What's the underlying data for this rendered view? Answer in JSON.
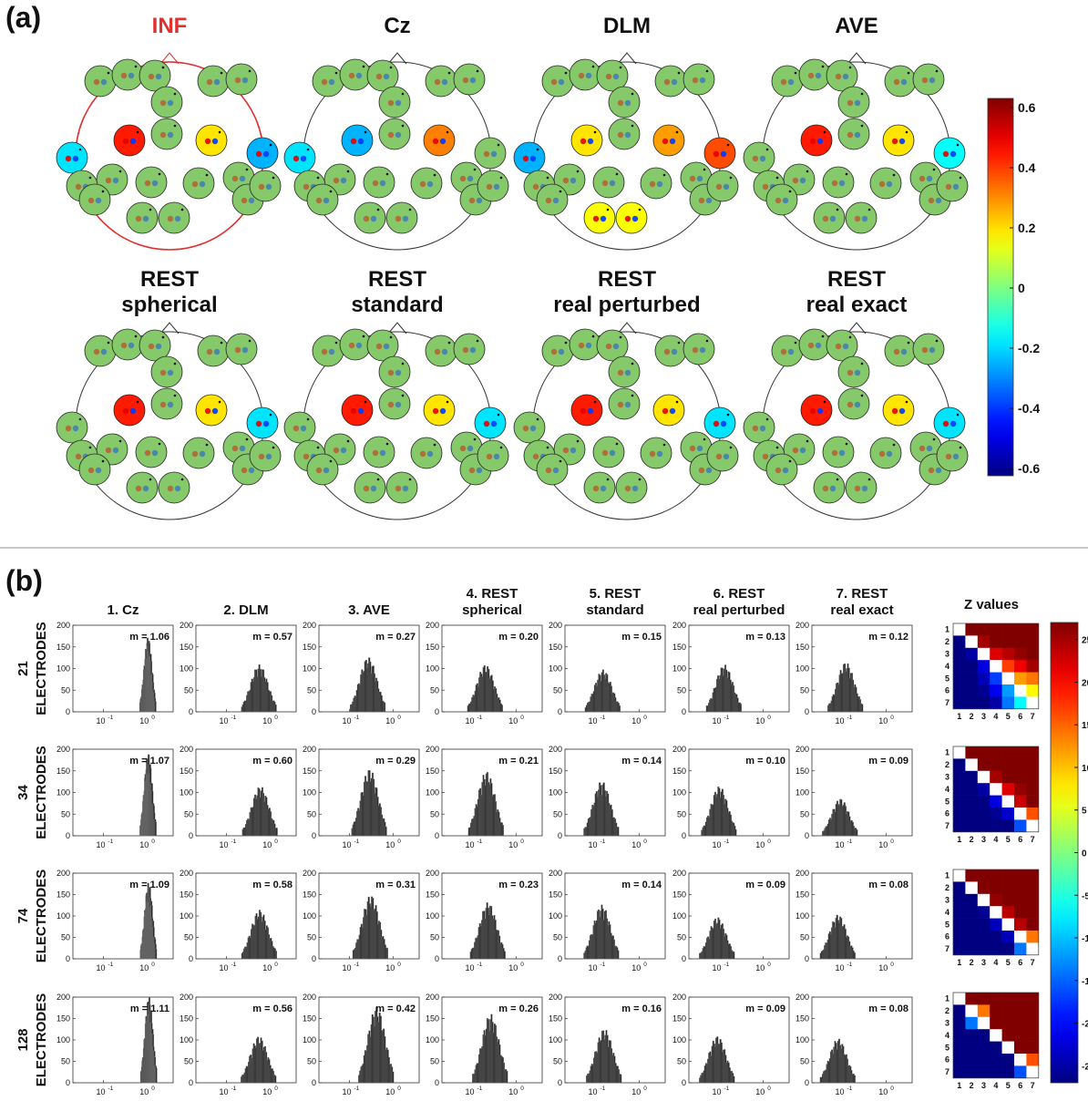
{
  "panel_a": {
    "label": "(a)",
    "titles": [
      [
        "INF"
      ],
      [
        "Cz"
      ],
      [
        "DLM"
      ],
      [
        "AVE"
      ],
      [
        "REST",
        "spherical"
      ],
      [
        "REST",
        "standard"
      ],
      [
        "REST",
        "real perturbed"
      ],
      [
        "REST",
        "real exact"
      ]
    ],
    "colorbar": {
      "ticks": [
        "0.6",
        "0.4",
        "0.2",
        "0",
        "-0.2",
        "-0.4",
        "-0.6"
      ]
    }
  },
  "panel_b": {
    "label": "(b)",
    "columns": [
      [
        "1. Cz"
      ],
      [
        "2. DLM"
      ],
      [
        "3. AVE"
      ],
      [
        "4. REST",
        "spherical"
      ],
      [
        "5. REST",
        "standard"
      ],
      [
        "6. REST",
        "real perturbed"
      ],
      [
        "7. REST",
        "real exact"
      ]
    ],
    "rows": [
      [
        "21",
        "ELECTRODES"
      ],
      [
        "34",
        "ELECTRODES"
      ],
      [
        "74",
        "ELECTRODES"
      ],
      [
        "128",
        "ELECTRODES"
      ]
    ],
    "z_title": "Z values",
    "z_colorbar": {
      "ticks": [
        "25",
        "20",
        "15",
        "10",
        "5",
        "0",
        "-5",
        "-10",
        "-15",
        "-20",
        "-25"
      ]
    },
    "matrix_ticks": [
      "1",
      "2",
      "3",
      "4",
      "5",
      "6",
      "7"
    ]
  },
  "chart_data": [
    {
      "type": "heatmap",
      "title": "(a)",
      "maps": [
        "INF",
        "Cz",
        "DLM",
        "AVE",
        "REST spherical",
        "REST standard",
        "REST real perturbed",
        "REST real exact"
      ],
      "colorbar_range": [
        -0.6,
        0.6
      ],
      "colorbar_ticks": [
        0.6,
        0.4,
        0.2,
        0,
        -0.2,
        -0.4,
        -0.6
      ]
    },
    {
      "type": "bar",
      "title": "(b)",
      "xscale": "log",
      "xticks": [
        "10^-1",
        "10^0"
      ],
      "ylim": [
        0,
        200
      ],
      "yticks": [
        0,
        50,
        100,
        150,
        200
      ],
      "columns": [
        "1. Cz",
        "2. DLM",
        "3. AVE",
        "4. REST spherical",
        "5. REST standard",
        "6. REST real perturbed",
        "7. REST real exact"
      ],
      "rows": [
        "21 ELECTRODES",
        "34 ELECTRODES",
        "74 ELECTRODES",
        "128 ELECTRODES"
      ],
      "m_values": [
        [
          "m = 1.06",
          "m = 0.57",
          "m = 0.27",
          "m = 0.20",
          "m = 0.15",
          "m = 0.13",
          "m = 0.12"
        ],
        [
          "m = 1.07",
          "m = 0.60",
          "m = 0.29",
          "m = 0.21",
          "m = 0.14",
          "m = 0.10",
          "m = 0.09"
        ],
        [
          "m = 1.09",
          "m = 0.58",
          "m = 0.31",
          "m = 0.23",
          "m = 0.14",
          "m = 0.09",
          "m = 0.08"
        ],
        [
          "m = 1.11",
          "m = 0.56",
          "m = 0.42",
          "m = 0.26",
          "m = 0.16",
          "m = 0.09",
          "m = 0.08"
        ]
      ],
      "m_numeric": [
        [
          1.06,
          0.57,
          0.27,
          0.2,
          0.15,
          0.13,
          0.12
        ],
        [
          1.07,
          0.6,
          0.29,
          0.21,
          0.14,
          0.1,
          0.09
        ],
        [
          1.09,
          0.58,
          0.31,
          0.23,
          0.14,
          0.09,
          0.08
        ],
        [
          1.11,
          0.56,
          0.42,
          0.26,
          0.16,
          0.09,
          0.08
        ]
      ],
      "peak_counts": [
        [
          150,
          95,
          110,
          95,
          85,
          95,
          100
        ],
        [
          165,
          100,
          135,
          130,
          110,
          100,
          75
        ],
        [
          155,
          100,
          130,
          115,
          110,
          85,
          90
        ],
        [
          175,
          95,
          155,
          140,
          110,
          95,
          90
        ]
      ]
    },
    {
      "type": "heatmap",
      "title": "Z values",
      "xticks": [
        1,
        2,
        3,
        4,
        5,
        6,
        7
      ],
      "yticks": [
        1,
        2,
        3,
        4,
        5,
        6,
        7
      ],
      "colorbar_range": [
        -27,
        27
      ],
      "colorbar_ticks": [
        25,
        20,
        15,
        10,
        5,
        0,
        -5,
        -10,
        -15,
        -20,
        -25
      ],
      "matrices": [
        [
          [
            0,
            27,
            27,
            27,
            27,
            27,
            27
          ],
          [
            -27,
            0,
            25,
            27,
            27,
            27,
            27
          ],
          [
            -27,
            -25,
            0,
            22,
            24,
            26,
            27
          ],
          [
            -27,
            -27,
            -22,
            0,
            17,
            21,
            25
          ],
          [
            -27,
            -27,
            -24,
            -17,
            0,
            12,
            14
          ],
          [
            -27,
            -27,
            -26,
            -21,
            -12,
            0,
            7
          ],
          [
            -27,
            -27,
            -27,
            -25,
            -14,
            -7,
            0
          ]
        ],
        [
          [
            0,
            27,
            27,
            27,
            27,
            27,
            27
          ],
          [
            -27,
            0,
            27,
            27,
            27,
            27,
            27
          ],
          [
            -27,
            -27,
            0,
            25,
            27,
            27,
            27
          ],
          [
            -27,
            -27,
            -25,
            0,
            22,
            26,
            27
          ],
          [
            -27,
            -27,
            -27,
            -22,
            0,
            23,
            27
          ],
          [
            -27,
            -27,
            -27,
            -26,
            -23,
            0,
            16
          ],
          [
            -27,
            -27,
            -27,
            -27,
            -27,
            -16,
            0
          ]
        ],
        [
          [
            0,
            27,
            27,
            27,
            27,
            27,
            27
          ],
          [
            -27,
            0,
            27,
            27,
            27,
            27,
            27
          ],
          [
            -27,
            -27,
            0,
            26,
            27,
            27,
            27
          ],
          [
            -27,
            -27,
            -26,
            0,
            24,
            27,
            27
          ],
          [
            -27,
            -27,
            -27,
            -24,
            0,
            24,
            27
          ],
          [
            -27,
            -27,
            -27,
            -27,
            -24,
            0,
            14
          ],
          [
            -27,
            -27,
            -27,
            -27,
            -27,
            -14,
            0
          ]
        ],
        [
          [
            0,
            27,
            27,
            27,
            27,
            27,
            27
          ],
          [
            -27,
            0,
            14,
            27,
            27,
            27,
            27
          ],
          [
            -27,
            -14,
            0,
            27,
            27,
            27,
            27
          ],
          [
            -27,
            -27,
            -27,
            0,
            27,
            27,
            27
          ],
          [
            -27,
            -27,
            -27,
            -27,
            0,
            27,
            27
          ],
          [
            -27,
            -27,
            -27,
            -27,
            -27,
            0,
            16
          ],
          [
            -27,
            -27,
            -27,
            -27,
            -27,
            -16,
            0
          ]
        ]
      ]
    }
  ]
}
